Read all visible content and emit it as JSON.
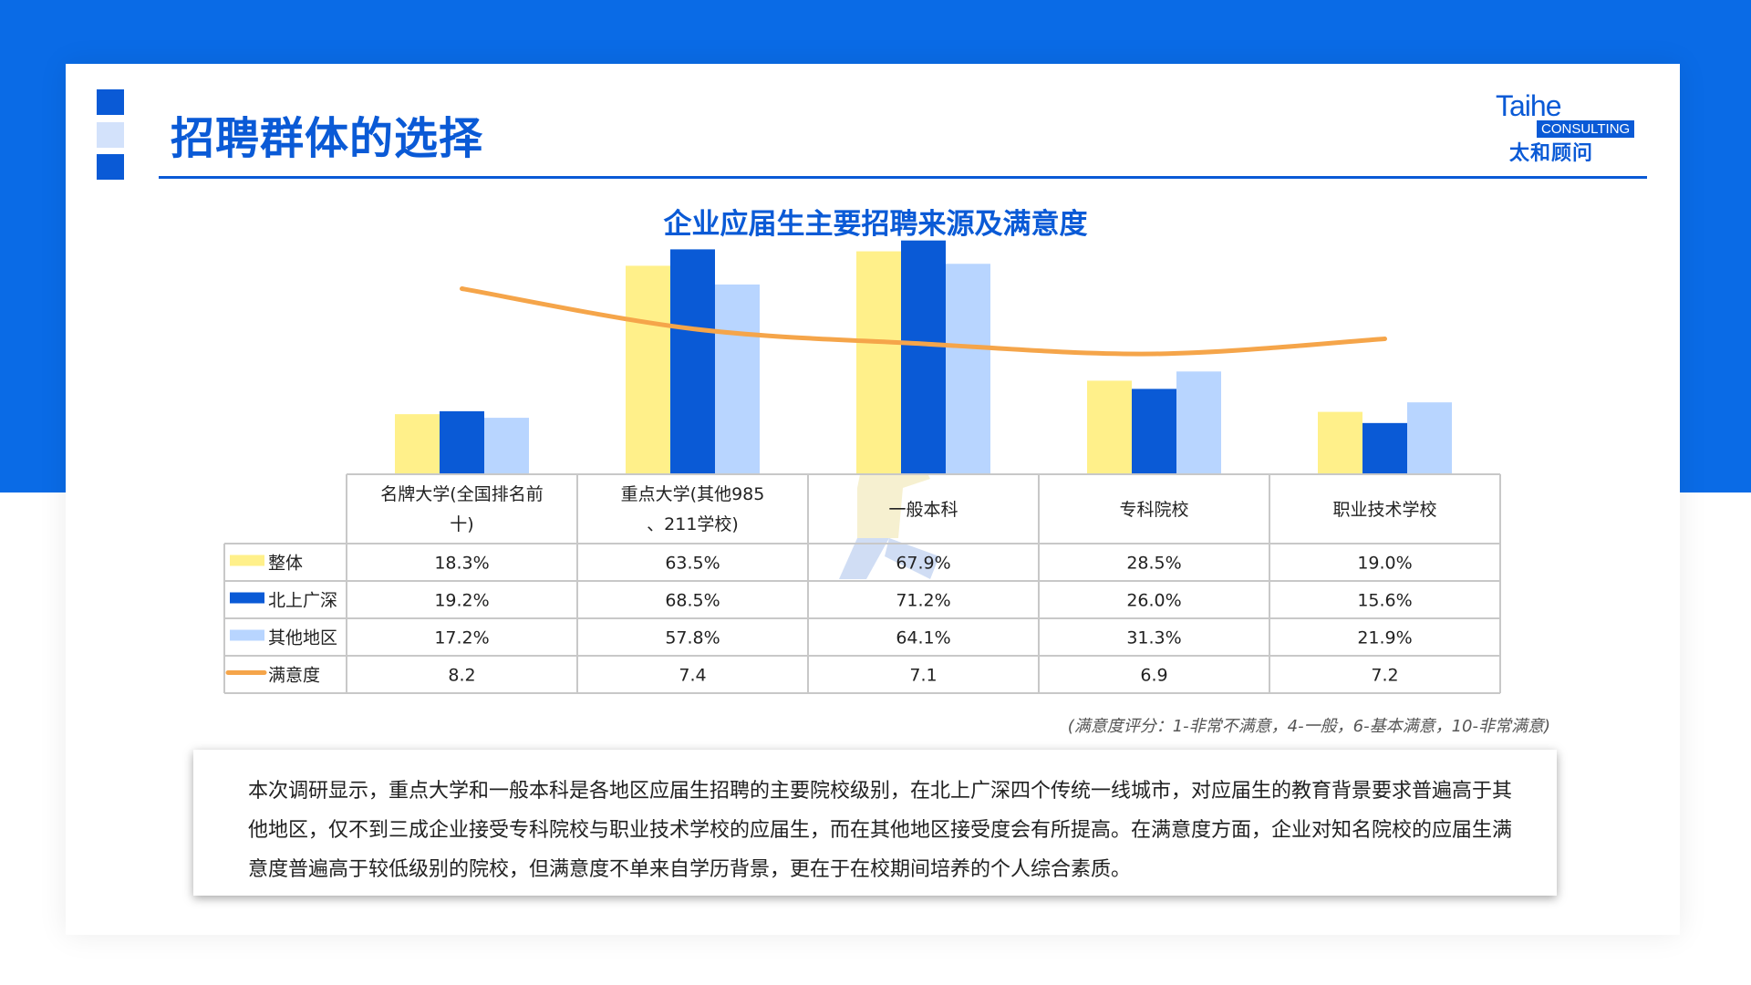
{
  "header": {
    "title": "招聘群体的选择",
    "logo_en": "Taihe",
    "logo_tag": "CONSULTING",
    "logo_cn": "太和顾问"
  },
  "colors": {
    "brand_blue": "#0a5ad6",
    "yellow": "#fff08a",
    "dark_blue": "#0a5ad6",
    "light_blue": "#b8d5ff",
    "orange": "#f5a54a"
  },
  "chart_data": {
    "type": "bar",
    "title": "企业应届生主要招聘来源及满意度",
    "categories": [
      "名牌大学(全国排名前十)",
      "重点大学(其他985、211学校)",
      "一般本科",
      "专科院校",
      "职业技术学校"
    ],
    "series": [
      {
        "name": "整体",
        "values": [
          18.3,
          63.5,
          67.9,
          28.5,
          19.0
        ],
        "labels": [
          "18.3%",
          "63.5%",
          "67.9%",
          "28.5%",
          "19.0%"
        ],
        "color": "#fff08a"
      },
      {
        "name": "北上广深",
        "values": [
          19.2,
          68.5,
          71.2,
          26.0,
          15.6
        ],
        "labels": [
          "19.2%",
          "68.5%",
          "71.2%",
          "26.0%",
          "15.6%"
        ],
        "color": "#0a5ad6"
      },
      {
        "name": "其他地区",
        "values": [
          17.2,
          57.8,
          64.1,
          31.3,
          21.9
        ],
        "labels": [
          "17.2%",
          "57.8%",
          "64.1%",
          "31.3%",
          "21.9%"
        ],
        "color": "#b8d5ff"
      }
    ],
    "line_series": {
      "name": "满意度",
      "values": [
        8.2,
        7.4,
        7.1,
        6.9,
        7.2
      ],
      "labels": [
        "8.2",
        "7.4",
        "7.1",
        "6.9",
        "7.2"
      ],
      "color": "#f5a54a"
    },
    "ylim": [
      0,
      75
    ],
    "line_ylim": [
      4.5,
      8.5
    ],
    "note": "(满意度评分：1-非常不满意，4-一般，6-基本满意，10-非常满意)"
  },
  "summary": {
    "text": "本次调研显示，重点大学和一般本科是各地区应届生招聘的主要院校级别，在北上广深四个传统一线城市，对应届生的教育背景要求普遍高于其他地区，仅不到三成企业接受专科院校与职业技术学校的应届生，而在其他地区接受度会有所提高。在满意度方面，企业对知名院校的应届生满意度普遍高于较低级别的院校，但满意度不单来自学历背景，更在于在校期间培养的个人综合素质。"
  }
}
